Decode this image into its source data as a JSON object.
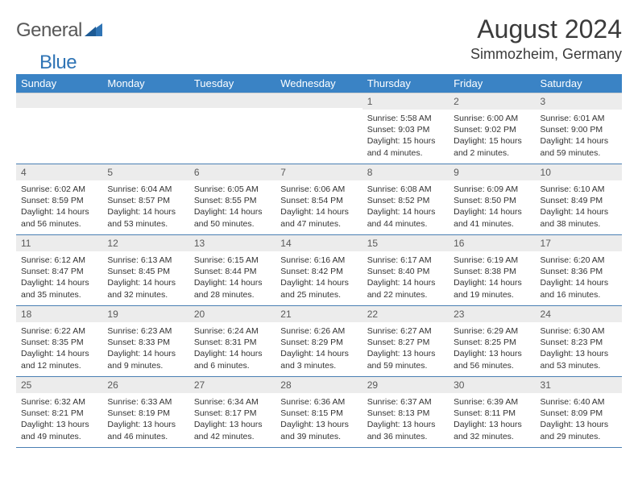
{
  "logo": {
    "word1": "General",
    "word2": "Blue"
  },
  "title": "August 2024",
  "location": "Simmozheim, Germany",
  "colors": {
    "header_bg": "#3a83c5",
    "header_text": "#ffffff",
    "daynum_bg": "#ececec",
    "cell_border": "#4a7fb3",
    "logo_blue": "#2f74b5",
    "text_gray": "#585858"
  },
  "day_labels": [
    "Sunday",
    "Monday",
    "Tuesday",
    "Wednesday",
    "Thursday",
    "Friday",
    "Saturday"
  ],
  "weeks": [
    [
      {
        "n": "",
        "sunrise": "",
        "sunset": "",
        "daylight": ""
      },
      {
        "n": "",
        "sunrise": "",
        "sunset": "",
        "daylight": ""
      },
      {
        "n": "",
        "sunrise": "",
        "sunset": "",
        "daylight": ""
      },
      {
        "n": "",
        "sunrise": "",
        "sunset": "",
        "daylight": ""
      },
      {
        "n": "1",
        "sunrise": "Sunrise: 5:58 AM",
        "sunset": "Sunset: 9:03 PM",
        "daylight": "Daylight: 15 hours and 4 minutes."
      },
      {
        "n": "2",
        "sunrise": "Sunrise: 6:00 AM",
        "sunset": "Sunset: 9:02 PM",
        "daylight": "Daylight: 15 hours and 2 minutes."
      },
      {
        "n": "3",
        "sunrise": "Sunrise: 6:01 AM",
        "sunset": "Sunset: 9:00 PM",
        "daylight": "Daylight: 14 hours and 59 minutes."
      }
    ],
    [
      {
        "n": "4",
        "sunrise": "Sunrise: 6:02 AM",
        "sunset": "Sunset: 8:59 PM",
        "daylight": "Daylight: 14 hours and 56 minutes."
      },
      {
        "n": "5",
        "sunrise": "Sunrise: 6:04 AM",
        "sunset": "Sunset: 8:57 PM",
        "daylight": "Daylight: 14 hours and 53 minutes."
      },
      {
        "n": "6",
        "sunrise": "Sunrise: 6:05 AM",
        "sunset": "Sunset: 8:55 PM",
        "daylight": "Daylight: 14 hours and 50 minutes."
      },
      {
        "n": "7",
        "sunrise": "Sunrise: 6:06 AM",
        "sunset": "Sunset: 8:54 PM",
        "daylight": "Daylight: 14 hours and 47 minutes."
      },
      {
        "n": "8",
        "sunrise": "Sunrise: 6:08 AM",
        "sunset": "Sunset: 8:52 PM",
        "daylight": "Daylight: 14 hours and 44 minutes."
      },
      {
        "n": "9",
        "sunrise": "Sunrise: 6:09 AM",
        "sunset": "Sunset: 8:50 PM",
        "daylight": "Daylight: 14 hours and 41 minutes."
      },
      {
        "n": "10",
        "sunrise": "Sunrise: 6:10 AM",
        "sunset": "Sunset: 8:49 PM",
        "daylight": "Daylight: 14 hours and 38 minutes."
      }
    ],
    [
      {
        "n": "11",
        "sunrise": "Sunrise: 6:12 AM",
        "sunset": "Sunset: 8:47 PM",
        "daylight": "Daylight: 14 hours and 35 minutes."
      },
      {
        "n": "12",
        "sunrise": "Sunrise: 6:13 AM",
        "sunset": "Sunset: 8:45 PM",
        "daylight": "Daylight: 14 hours and 32 minutes."
      },
      {
        "n": "13",
        "sunrise": "Sunrise: 6:15 AM",
        "sunset": "Sunset: 8:44 PM",
        "daylight": "Daylight: 14 hours and 28 minutes."
      },
      {
        "n": "14",
        "sunrise": "Sunrise: 6:16 AM",
        "sunset": "Sunset: 8:42 PM",
        "daylight": "Daylight: 14 hours and 25 minutes."
      },
      {
        "n": "15",
        "sunrise": "Sunrise: 6:17 AM",
        "sunset": "Sunset: 8:40 PM",
        "daylight": "Daylight: 14 hours and 22 minutes."
      },
      {
        "n": "16",
        "sunrise": "Sunrise: 6:19 AM",
        "sunset": "Sunset: 8:38 PM",
        "daylight": "Daylight: 14 hours and 19 minutes."
      },
      {
        "n": "17",
        "sunrise": "Sunrise: 6:20 AM",
        "sunset": "Sunset: 8:36 PM",
        "daylight": "Daylight: 14 hours and 16 minutes."
      }
    ],
    [
      {
        "n": "18",
        "sunrise": "Sunrise: 6:22 AM",
        "sunset": "Sunset: 8:35 PM",
        "daylight": "Daylight: 14 hours and 12 minutes."
      },
      {
        "n": "19",
        "sunrise": "Sunrise: 6:23 AM",
        "sunset": "Sunset: 8:33 PM",
        "daylight": "Daylight: 14 hours and 9 minutes."
      },
      {
        "n": "20",
        "sunrise": "Sunrise: 6:24 AM",
        "sunset": "Sunset: 8:31 PM",
        "daylight": "Daylight: 14 hours and 6 minutes."
      },
      {
        "n": "21",
        "sunrise": "Sunrise: 6:26 AM",
        "sunset": "Sunset: 8:29 PM",
        "daylight": "Daylight: 14 hours and 3 minutes."
      },
      {
        "n": "22",
        "sunrise": "Sunrise: 6:27 AM",
        "sunset": "Sunset: 8:27 PM",
        "daylight": "Daylight: 13 hours and 59 minutes."
      },
      {
        "n": "23",
        "sunrise": "Sunrise: 6:29 AM",
        "sunset": "Sunset: 8:25 PM",
        "daylight": "Daylight: 13 hours and 56 minutes."
      },
      {
        "n": "24",
        "sunrise": "Sunrise: 6:30 AM",
        "sunset": "Sunset: 8:23 PM",
        "daylight": "Daylight: 13 hours and 53 minutes."
      }
    ],
    [
      {
        "n": "25",
        "sunrise": "Sunrise: 6:32 AM",
        "sunset": "Sunset: 8:21 PM",
        "daylight": "Daylight: 13 hours and 49 minutes."
      },
      {
        "n": "26",
        "sunrise": "Sunrise: 6:33 AM",
        "sunset": "Sunset: 8:19 PM",
        "daylight": "Daylight: 13 hours and 46 minutes."
      },
      {
        "n": "27",
        "sunrise": "Sunrise: 6:34 AM",
        "sunset": "Sunset: 8:17 PM",
        "daylight": "Daylight: 13 hours and 42 minutes."
      },
      {
        "n": "28",
        "sunrise": "Sunrise: 6:36 AM",
        "sunset": "Sunset: 8:15 PM",
        "daylight": "Daylight: 13 hours and 39 minutes."
      },
      {
        "n": "29",
        "sunrise": "Sunrise: 6:37 AM",
        "sunset": "Sunset: 8:13 PM",
        "daylight": "Daylight: 13 hours and 36 minutes."
      },
      {
        "n": "30",
        "sunrise": "Sunrise: 6:39 AM",
        "sunset": "Sunset: 8:11 PM",
        "daylight": "Daylight: 13 hours and 32 minutes."
      },
      {
        "n": "31",
        "sunrise": "Sunrise: 6:40 AM",
        "sunset": "Sunset: 8:09 PM",
        "daylight": "Daylight: 13 hours and 29 minutes."
      }
    ]
  ]
}
